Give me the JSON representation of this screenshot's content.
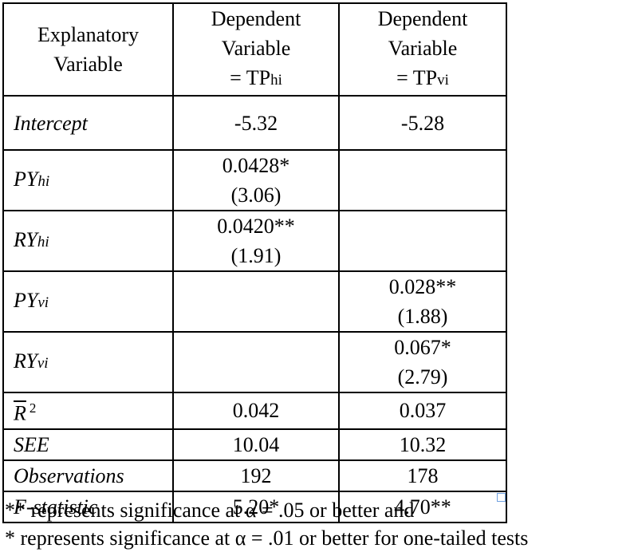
{
  "header": {
    "col1": [
      "Explanatory",
      "Variable"
    ],
    "col2": [
      "Dependent",
      "Variable",
      "= TP",
      "hi"
    ],
    "col3": [
      "Dependent",
      "Variable",
      "= TP",
      "vi"
    ]
  },
  "rows": {
    "intercept": {
      "label": "Intercept",
      "hi": "-5.32",
      "vi": "-5.28"
    },
    "py_hi": {
      "base": "PY",
      "sub": "hi",
      "hi_coef": "0.0428*",
      "hi_t": "(3.06)"
    },
    "ry_hi": {
      "base": "RY",
      "sub": "hi",
      "hi_coef": "0.0420**",
      "hi_t": "(1.91)"
    },
    "py_vi": {
      "base": "PY",
      "sub": "vi",
      "vi_coef": "0.028**",
      "vi_t": "(1.88)"
    },
    "ry_vi": {
      "base": "RY",
      "sub": "vi",
      "vi_coef": "0.067*",
      "vi_t": "(2.79)"
    },
    "rsq": {
      "base": "R",
      "sup": "2",
      "hi": "0.042",
      "vi": "0.037"
    },
    "see": {
      "label": "SEE",
      "hi": "10.04",
      "vi": "10.32"
    },
    "obs": {
      "label": "Observations",
      "hi": "192",
      "vi": "178"
    },
    "fstat": {
      "label": "F-statistic",
      "hi": "5.20*",
      "vi": "4.70**"
    }
  },
  "notes": {
    "line1": "** represents significance at α = .05 or better and",
    "line2": "* represents significance at α = .01 or better for one-tailed tests"
  }
}
